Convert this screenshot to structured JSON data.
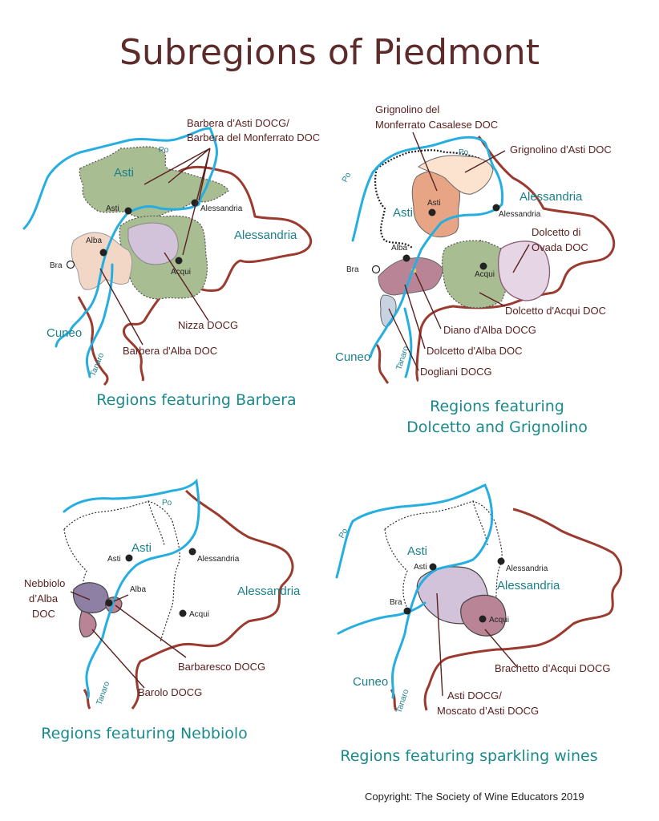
{
  "title": "Subregions of Piedmont",
  "copyright": "Copyright:  The Society of Wine Educators 2019",
  "colors": {
    "title": "#5e2b2b",
    "caption": "#1a8a8c",
    "river": "#27aee0",
    "border": "#9b3a2e",
    "label": "#5a2020",
    "green_region": "#a9bd92",
    "lilac_region": "#d3c3da",
    "peach_region": "#f3d7c6",
    "salmon_region": "#e8a585",
    "mauve_region": "#b98596",
    "purple_region": "#8e7fa4"
  },
  "maps": {
    "barbera": {
      "caption": "Regions featuring Barbera",
      "labels": {
        "barbera_asti": "Barbera d’Asti DOCG/",
        "barbera_monferrato": "Barbera del Monferrato DOC",
        "nizza": "Nizza DOCG",
        "barbera_alba": "Barbera d'Alba DOC"
      },
      "places": {
        "asti_region": "Asti",
        "asti": "Asti",
        "alessandria_city": "Alessandria",
        "alessandria_region": "Alessandria",
        "alba": "Alba",
        "bra": "Bra",
        "acqui": "Acqui",
        "cuneo": "Cuneo",
        "po": "Po",
        "tanaro": "Tanaro"
      }
    },
    "dolcetto": {
      "caption_line1": "Regions featuring",
      "caption_line2": "Dolcetto and Grignolino",
      "labels": {
        "grignolino_casalese_1": "Grignolino del",
        "grignolino_casalese_2": "Monferrato Casalese DOC",
        "grignolino_asti": "Grignolino d'Asti DOC",
        "dolcetto_ovada_1": "Dolcetto di",
        "dolcetto_ovada_2": "Ovada DOC",
        "dolcetto_acqui": "Dolcetto d'Acqui DOC",
        "diano": "Diano d'Alba DOCG",
        "dolcetto_alba": "Dolcetto d'Alba DOC",
        "dogliani": "Dogliani DOCG"
      },
      "places": {
        "asti_region": "Asti",
        "asti": "Asti",
        "alessandria_region": "Alessandria",
        "alessandria_city": "Alessandria",
        "alba": "Alba",
        "bra": "Bra",
        "acqui": "Acqui",
        "cuneo": "Cuneo",
        "po_left": "Po",
        "po_top": "Po",
        "tanaro": "Tanaro"
      }
    },
    "nebbiolo": {
      "caption": "Regions featuring Nebbiolo",
      "labels": {
        "nebbiolo_1": "Nebbiolo",
        "nebbiolo_2": "d’Alba",
        "nebbiolo_3": "DOC",
        "barbaresco": "Barbaresco DOCG",
        "barolo": "Barolo DOCG"
      },
      "places": {
        "asti_region": "Asti",
        "asti": "Asti",
        "alessandria_city": "Alessandria",
        "alessandria_region": "Alessandria",
        "alba": "Alba",
        "acqui": "Acqui",
        "po": "Po",
        "tanaro": "Tanaro"
      }
    },
    "sparkling": {
      "caption": "Regions featuring sparkling wines",
      "labels": {
        "brachetto": "Brachetto d’Acqui DOCG",
        "asti_docg_1": "Asti DOCG/",
        "asti_docg_2": "Moscato d’Asti DOCG"
      },
      "places": {
        "asti_region": "Asti",
        "asti": "Asti",
        "alessandria_city": "Alessandria",
        "alessandria_region": "Alessandria",
        "bra": "Bra",
        "acqui": "Acqui",
        "cuneo": "Cuneo",
        "po": "Po",
        "tanaro": "Tanaro"
      }
    }
  }
}
